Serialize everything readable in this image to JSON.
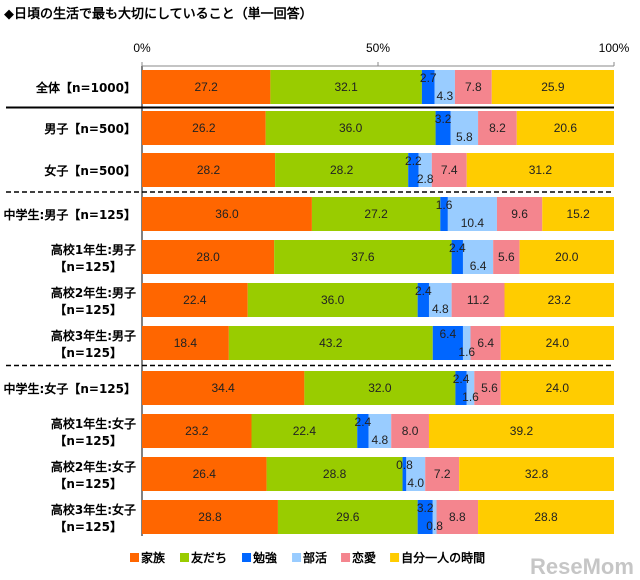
{
  "chart_data": {
    "type": "bar",
    "orientation": "horizontal",
    "stacked": true,
    "title": "◆日頃の生活で最も大切にしていること（単一回答）",
    "xlim": [
      0,
      100
    ],
    "x_ticks": [
      "0%",
      "50%",
      "100%"
    ],
    "grid": false,
    "legend_position": "bottom",
    "categories": [
      [
        "全体【n=1000】"
      ],
      [
        "男子【n=500】"
      ],
      [
        "女子【n=500】"
      ],
      [
        "中学生:男子【n=125】"
      ],
      [
        "高校1年生:男子",
        "【n=125】"
      ],
      [
        "高校2年生:男子",
        "【n=125】"
      ],
      [
        "高校3年生:男子",
        "【n=125】"
      ],
      [
        "中学生:女子【n=125】"
      ],
      [
        "高校1年生:女子",
        "【n=125】"
      ],
      [
        "高校2年生:女子",
        "【n=125】"
      ],
      [
        "高校3年生:女子",
        "【n=125】"
      ]
    ],
    "series": [
      {
        "name": "家族",
        "color": "#FF6600",
        "values": [
          27.2,
          26.2,
          28.2,
          36.0,
          28.0,
          22.4,
          18.4,
          34.4,
          23.2,
          26.4,
          28.8
        ]
      },
      {
        "name": "友だち",
        "color": "#99CC00",
        "values": [
          32.1,
          36.0,
          28.2,
          27.2,
          37.6,
          36.0,
          43.2,
          32.0,
          22.4,
          28.8,
          29.6
        ]
      },
      {
        "name": "勉強",
        "color": "#0066FF",
        "values": [
          2.7,
          3.2,
          2.2,
          1.6,
          2.4,
          2.4,
          6.4,
          2.4,
          2.4,
          0.8,
          3.2
        ]
      },
      {
        "name": "部活",
        "color": "#99CCFF",
        "values": [
          4.3,
          5.8,
          2.8,
          10.4,
          6.4,
          4.8,
          1.6,
          1.6,
          4.8,
          4.0,
          0.8
        ]
      },
      {
        "name": "恋愛",
        "color": "#F4858E",
        "values": [
          7.8,
          8.2,
          7.4,
          9.6,
          5.6,
          11.2,
          6.4,
          5.6,
          8.0,
          7.2,
          8.8
        ]
      },
      {
        "name": "自分一人の時間",
        "color": "#FFCC00",
        "values": [
          25.9,
          20.6,
          31.2,
          15.2,
          20.0,
          23.2,
          24.0,
          24.0,
          39.2,
          32.8,
          28.8
        ]
      }
    ],
    "separators": [
      {
        "after_row": 0,
        "style": "solid"
      },
      {
        "after_row": 2,
        "style": "dashed"
      },
      {
        "after_row": 6,
        "style": "dashed"
      }
    ]
  },
  "watermark": "ReseMom"
}
